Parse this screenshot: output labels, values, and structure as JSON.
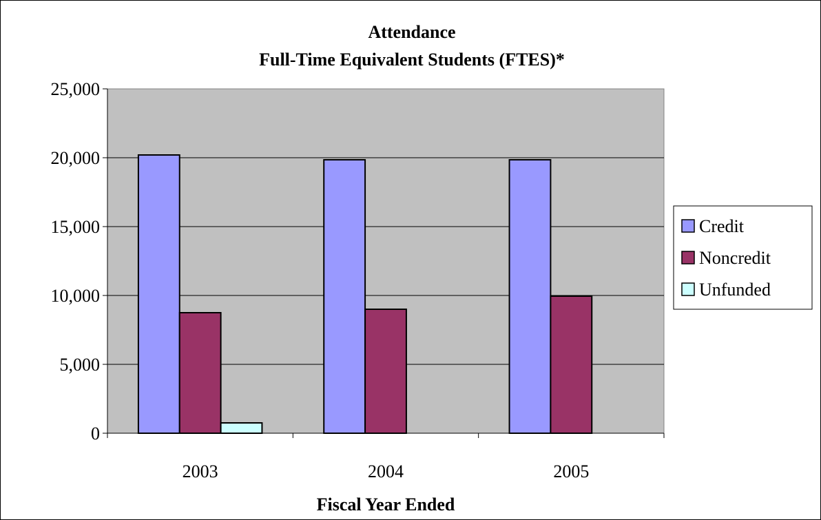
{
  "chart_data": {
    "type": "bar",
    "title": "Attendance",
    "subtitle": "Full-Time Equivalent Students (FTES)*",
    "xlabel": "Fiscal Year Ended",
    "ylabel": "",
    "categories": [
      "2003",
      "2004",
      "2005"
    ],
    "series": [
      {
        "name": "Credit",
        "color": "#9999ff",
        "values": [
          20200,
          19850,
          19850
        ]
      },
      {
        "name": "Noncredit",
        "color": "#993366",
        "values": [
          8750,
          9000,
          9950
        ]
      },
      {
        "name": "Unfunded",
        "color": "#ccffff",
        "values": [
          750,
          0,
          0
        ]
      }
    ],
    "ylim": [
      0,
      25000
    ],
    "yticks": [
      0,
      5000,
      10000,
      15000,
      20000,
      25000
    ],
    "ytick_labels": [
      "0",
      "5,000",
      "10,000",
      "15,000",
      "20,000",
      "25,000"
    ],
    "grid": true,
    "plot_background": "#c0c0c0",
    "legend_position": "right"
  }
}
